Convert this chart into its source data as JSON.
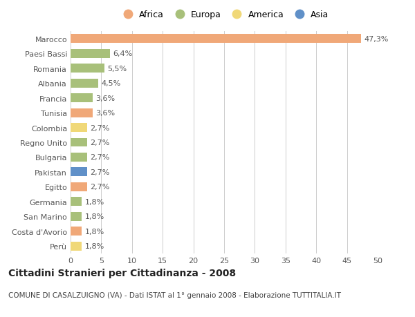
{
  "categories": [
    "Marocco",
    "Paesi Bassi",
    "Romania",
    "Albania",
    "Francia",
    "Tunisia",
    "Colombia",
    "Regno Unito",
    "Bulgaria",
    "Pakistan",
    "Egitto",
    "Germania",
    "San Marino",
    "Costa d'Avorio",
    "Perù"
  ],
  "values": [
    47.3,
    6.4,
    5.5,
    4.5,
    3.6,
    3.6,
    2.7,
    2.7,
    2.7,
    2.7,
    2.7,
    1.8,
    1.8,
    1.8,
    1.8
  ],
  "labels": [
    "47,3%",
    "6,4%",
    "5,5%",
    "4,5%",
    "3,6%",
    "3,6%",
    "2,7%",
    "2,7%",
    "2,7%",
    "2,7%",
    "2,7%",
    "1,8%",
    "1,8%",
    "1,8%",
    "1,8%"
  ],
  "continents": [
    "Africa",
    "Europa",
    "Europa",
    "Europa",
    "Europa",
    "Africa",
    "America",
    "Europa",
    "Europa",
    "Asia",
    "Africa",
    "Europa",
    "Europa",
    "Africa",
    "America"
  ],
  "continent_colors": {
    "Africa": "#F0A878",
    "Europa": "#A8C07A",
    "America": "#F0D878",
    "Asia": "#6090C8"
  },
  "legend_order": [
    "Africa",
    "Europa",
    "America",
    "Asia"
  ],
  "title": "Cittadini Stranieri per Cittadinanza - 2008",
  "subtitle": "COMUNE DI CASALZUIGNO (VA) - Dati ISTAT al 1° gennaio 2008 - Elaborazione TUTTITALIA.IT",
  "xlim": [
    0,
    50
  ],
  "xticks": [
    0,
    5,
    10,
    15,
    20,
    25,
    30,
    35,
    40,
    45,
    50
  ],
  "background_color": "#ffffff",
  "grid_color": "#cccccc",
  "bar_height": 0.6,
  "label_fontsize": 8,
  "tick_fontsize": 8,
  "title_fontsize": 10,
  "subtitle_fontsize": 7.5
}
